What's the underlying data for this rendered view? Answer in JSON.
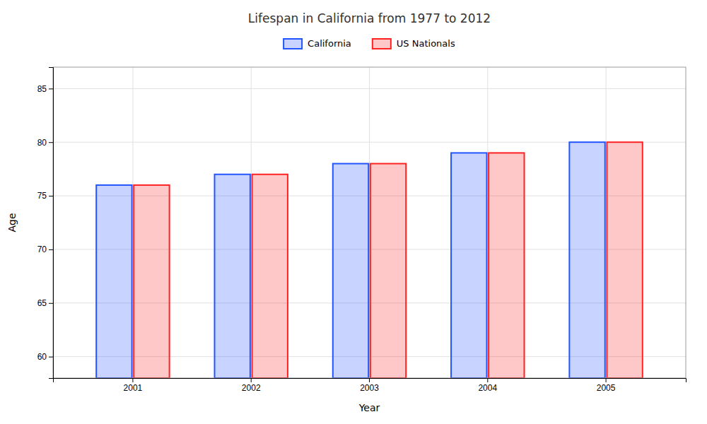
{
  "chart_data": {
    "type": "bar",
    "title": "Lifespan in California from 1977 to 2012",
    "xlabel": "Year",
    "ylabel": "Age",
    "categories": [
      "2001",
      "2002",
      "2003",
      "2004",
      "2005"
    ],
    "series": [
      {
        "name": "California",
        "color": "#2255ff",
        "values": [
          76,
          77,
          78,
          79,
          80
        ]
      },
      {
        "name": "US Nationals",
        "color": "#ff2222",
        "values": [
          76,
          77,
          78,
          79,
          80
        ]
      }
    ],
    "ylim": [
      58,
      87
    ],
    "yticks": [
      60,
      65,
      70,
      75,
      80,
      85
    ],
    "grid": true,
    "legend": "top"
  }
}
